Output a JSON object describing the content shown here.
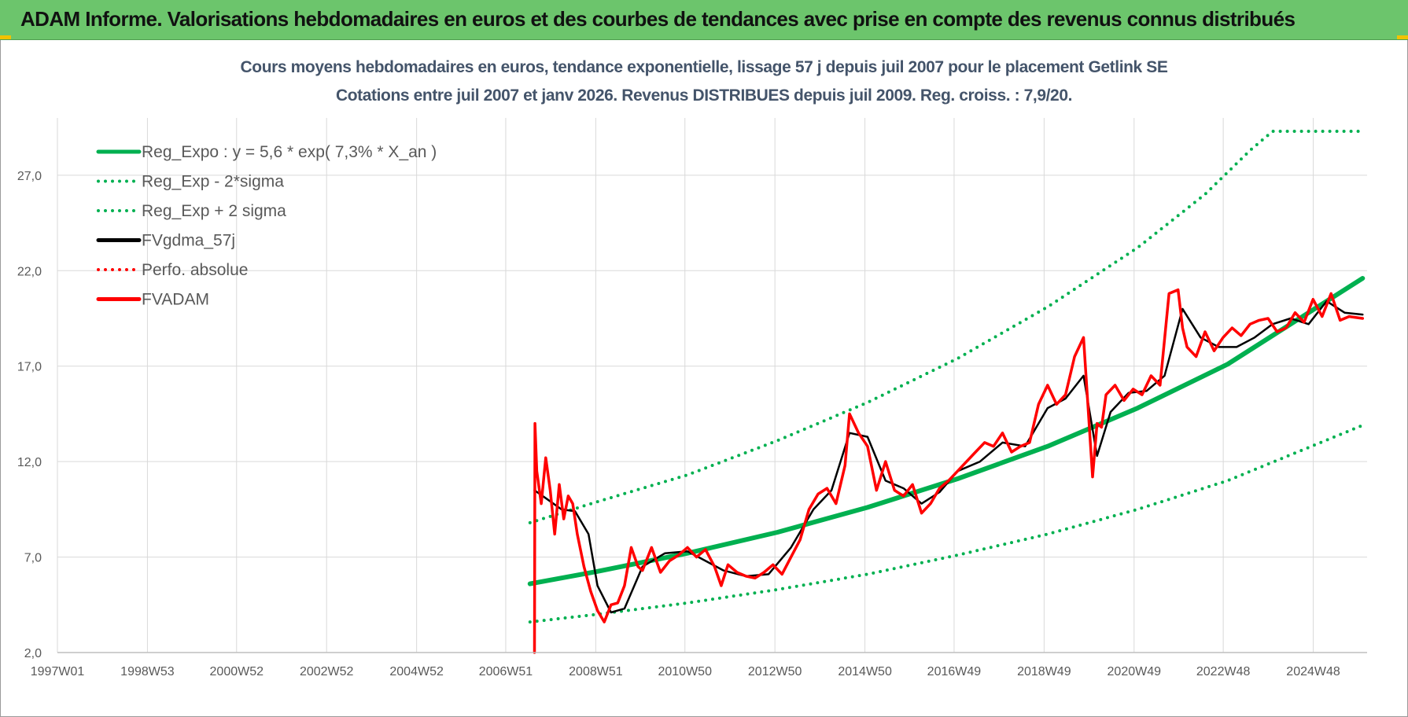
{
  "banner": {
    "title": "ADAM Informe. Valorisations hebdomadaires en euros et des courbes de tendances avec prise en compte des revenus connus distribués",
    "color": "#6cc56c"
  },
  "chart_data": {
    "type": "line",
    "title": "Cours moyens hebdomadaires en euros, tendance exponentielle, lissage 57 j depuis juil 2007 pour le placement Getlink SE",
    "subtitle": "Cotations entre juil 2007 et janv 2026. Revenus DISTRIBUES depuis juil 2009. Reg. croiss. : 7,9/20.",
    "xlabel": "",
    "ylabel": "",
    "x_tick_labels": [
      "1997W01",
      "1998W53",
      "2000W52",
      "2002W52",
      "2004W52",
      "2006W51",
      "2008W51",
      "2010W50",
      "2012W50",
      "2014W50",
      "2016W49",
      "2018W49",
      "2020W49",
      "2022W48",
      "2024W48"
    ],
    "x_range": [
      1997.0,
      2026.1
    ],
    "y_tick_labels": [
      "2,0",
      "7,0",
      "12,0",
      "17,0",
      "22,0",
      "27,0"
    ],
    "ylim": [
      2.0,
      30.0
    ],
    "grid": true,
    "legend_position": "top-left",
    "series": [
      {
        "name": "Reg_Expo : y = 5,6 * exp( 7,3% *  X_an )",
        "style": "solid",
        "color": "#00b050",
        "x": [
          2007.5,
          2009.0,
          2011.0,
          2013.0,
          2015.0,
          2017.0,
          2019.0,
          2021.0,
          2023.0,
          2026.0
        ],
        "y": [
          5.6,
          6.25,
          7.2,
          8.3,
          9.6,
          11.1,
          12.8,
          14.8,
          17.1,
          21.6
        ]
      },
      {
        "name": "Reg_Exp - 2*sigma",
        "style": "dotted",
        "color": "#00b050",
        "x": [
          2007.5,
          2009.0,
          2011.0,
          2013.0,
          2015.0,
          2017.0,
          2019.0,
          2021.0,
          2023.0,
          2026.0
        ],
        "y": [
          3.6,
          4.0,
          4.6,
          5.3,
          6.1,
          7.1,
          8.2,
          9.5,
          11.0,
          13.9
        ]
      },
      {
        "name": "Reg_Exp + 2 sigma",
        "style": "dotted",
        "color": "#00b050",
        "x": [
          2007.5,
          2009.0,
          2011.0,
          2013.0,
          2015.0,
          2017.0,
          2019.0,
          2021.0,
          2022.5,
          2023.5,
          2024.0,
          2026.0
        ],
        "y": [
          8.8,
          9.9,
          11.3,
          13.1,
          15.1,
          17.4,
          20.1,
          23.2,
          26.0,
          28.3,
          29.3,
          29.3
        ]
      },
      {
        "name": "FVgdma_57j",
        "style": "solid",
        "color": "#000000",
        "x": [
          2007.6,
          2007.9,
          2008.2,
          2008.5,
          2008.8,
          2009.0,
          2009.3,
          2009.6,
          2010.0,
          2010.5,
          2011.0,
          2011.4,
          2011.8,
          2012.3,
          2012.8,
          2013.3,
          2013.8,
          2014.2,
          2014.6,
          2015.0,
          2015.4,
          2015.8,
          2016.2,
          2016.6,
          2017.0,
          2017.5,
          2018.0,
          2018.5,
          2019.0,
          2019.4,
          2019.8,
          2020.1,
          2020.4,
          2020.8,
          2021.2,
          2021.6,
          2022.0,
          2022.4,
          2022.8,
          2023.2,
          2023.6,
          2024.0,
          2024.4,
          2024.8,
          2025.2,
          2025.6,
          2026.0
        ],
        "y": [
          10.5,
          10.0,
          9.5,
          9.4,
          8.2,
          5.5,
          4.1,
          4.3,
          6.5,
          7.2,
          7.3,
          6.8,
          6.3,
          6.0,
          6.1,
          7.5,
          9.5,
          10.5,
          13.5,
          13.3,
          11.0,
          10.6,
          9.8,
          10.4,
          11.5,
          12.0,
          13.0,
          12.8,
          14.8,
          15.3,
          16.5,
          12.3,
          14.6,
          15.6,
          15.7,
          16.5,
          20.0,
          18.5,
          18.0,
          18.0,
          18.5,
          19.2,
          19.5,
          19.2,
          20.4,
          19.8,
          19.7
        ]
      },
      {
        "name": "Perfo. absolue",
        "style": "dotted",
        "color": "#ff0000",
        "x": [],
        "y": []
      },
      {
        "name": "FVADAM",
        "style": "solid",
        "color": "#ff0000",
        "x": [
          2007.6,
          2007.61,
          2007.65,
          2007.75,
          2007.85,
          2007.95,
          2008.05,
          2008.15,
          2008.25,
          2008.35,
          2008.45,
          2008.55,
          2008.7,
          2008.85,
          2009.0,
          2009.15,
          2009.3,
          2009.45,
          2009.6,
          2009.75,
          2009.9,
          2010.0,
          2010.2,
          2010.4,
          2010.6,
          2010.8,
          2011.0,
          2011.2,
          2011.4,
          2011.6,
          2011.75,
          2011.9,
          2012.1,
          2012.3,
          2012.5,
          2012.7,
          2012.9,
          2013.1,
          2013.3,
          2013.5,
          2013.7,
          2013.9,
          2014.1,
          2014.3,
          2014.5,
          2014.6,
          2014.8,
          2015.0,
          2015.2,
          2015.4,
          2015.6,
          2015.8,
          2016.0,
          2016.2,
          2016.4,
          2016.6,
          2016.8,
          2017.0,
          2017.2,
          2017.4,
          2017.6,
          2017.8,
          2018.0,
          2018.2,
          2018.4,
          2018.6,
          2018.8,
          2019.0,
          2019.2,
          2019.4,
          2019.6,
          2019.8,
          2020.0,
          2020.1,
          2020.2,
          2020.3,
          2020.5,
          2020.7,
          2020.9,
          2021.1,
          2021.3,
          2021.5,
          2021.7,
          2021.9,
          2022.0,
          2022.1,
          2022.3,
          2022.5,
          2022.7,
          2022.9,
          2023.1,
          2023.3,
          2023.5,
          2023.7,
          2023.9,
          2024.1,
          2024.3,
          2024.5,
          2024.7,
          2024.9,
          2025.1,
          2025.3,
          2025.5,
          2025.7,
          2026.0
        ],
        "y": [
          2.0,
          14.0,
          11.5,
          9.8,
          12.2,
          10.5,
          8.2,
          10.8,
          9.0,
          10.2,
          9.8,
          8.2,
          6.5,
          5.2,
          4.2,
          3.6,
          4.5,
          4.6,
          5.5,
          7.5,
          6.5,
          6.3,
          7.5,
          6.2,
          6.8,
          7.1,
          7.5,
          7.0,
          7.4,
          6.5,
          5.5,
          6.6,
          6.2,
          6.0,
          5.9,
          6.2,
          6.6,
          6.1,
          7.0,
          7.9,
          9.5,
          10.3,
          10.6,
          9.8,
          11.8,
          14.5,
          13.5,
          12.8,
          10.5,
          12.0,
          10.5,
          10.2,
          10.8,
          9.3,
          9.8,
          10.6,
          11.0,
          11.5,
          12.0,
          12.5,
          13.0,
          12.8,
          13.5,
          12.5,
          12.8,
          13.0,
          15.0,
          16.0,
          15.0,
          15.5,
          17.5,
          18.5,
          11.2,
          14.0,
          13.8,
          15.5,
          16.0,
          15.2,
          15.8,
          15.5,
          16.5,
          16.0,
          20.8,
          21.0,
          19.0,
          18.0,
          17.5,
          18.8,
          17.8,
          18.5,
          19.0,
          18.6,
          19.2,
          19.4,
          19.5,
          18.8,
          19.0,
          19.8,
          19.3,
          20.5,
          19.6,
          20.8,
          19.4,
          19.6,
          19.5
        ]
      }
    ],
    "colors": {
      "grid": "#d9d9d9",
      "axis": "#bfbfbf",
      "title": "#44546a",
      "tick": "#595959"
    }
  }
}
